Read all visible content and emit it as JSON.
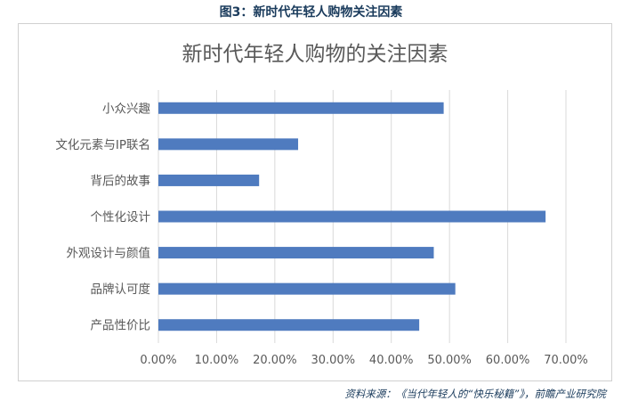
{
  "figure_caption": "图3：新时代年轻人购物关注因素",
  "source_note": "资料来源：《当代年轻人的“快乐秘籍”》，前瞻产业研究院",
  "colors": {
    "bar": "#4f7bbf",
    "grid": "#d9d9d9",
    "text": "#595959",
    "caption": "#1a3b5c"
  },
  "chart_data": {
    "type": "bar",
    "orientation": "horizontal",
    "title": "新时代年轻人购物的关注因素",
    "categories": [
      "小众兴趣",
      "文化元素与IP联名",
      "背后的故事",
      "个性化设计",
      "外观设计与颜值",
      "品牌认可度",
      "产品性价比"
    ],
    "values": [
      49.0,
      24.0,
      17.3,
      66.5,
      47.3,
      51.0,
      44.8
    ],
    "xlim": [
      0,
      70
    ],
    "xticks": [
      "0.00%",
      "10.00%",
      "20.00%",
      "30.00%",
      "40.00%",
      "50.00%",
      "60.00%",
      "70.00%"
    ],
    "grid": true,
    "legend": "none"
  }
}
